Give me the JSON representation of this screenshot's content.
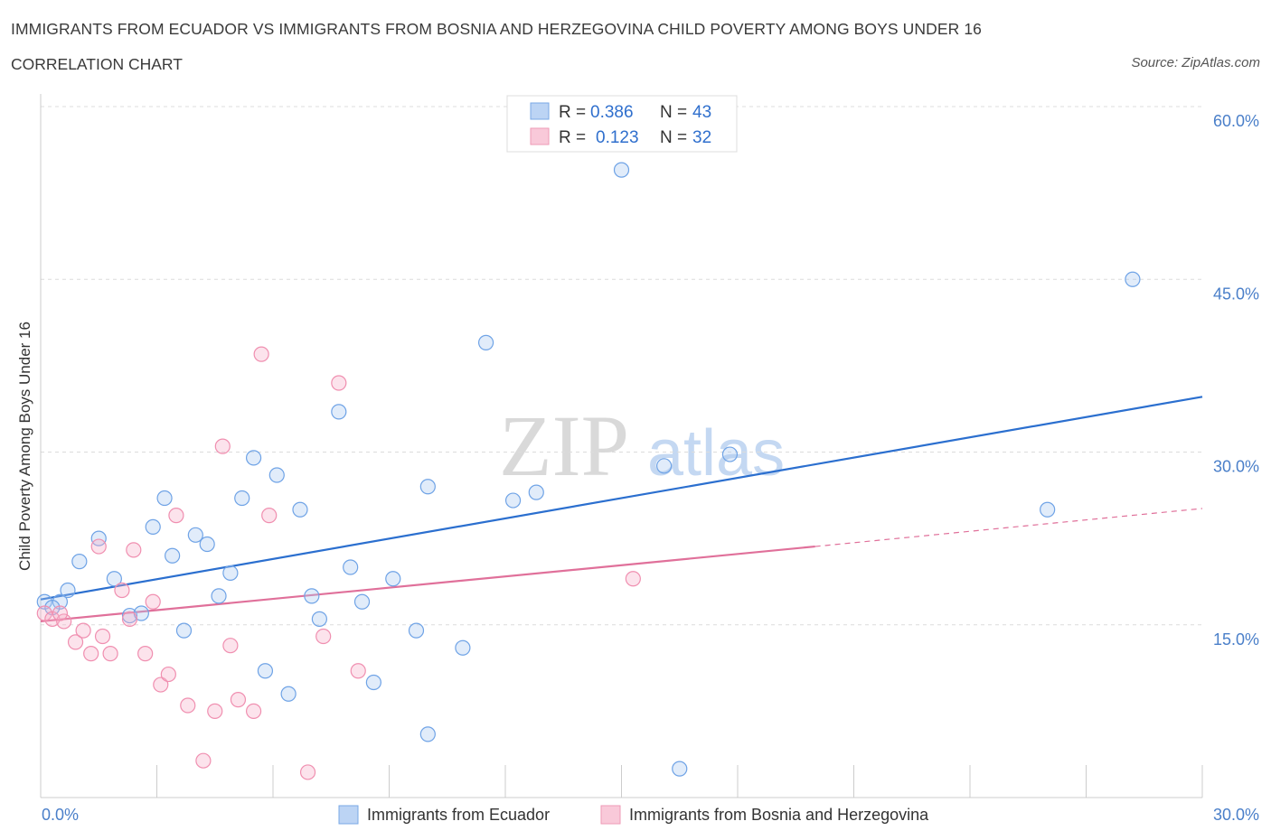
{
  "header": {
    "title": "IMMIGRANTS FROM ECUADOR VS IMMIGRANTS FROM BOSNIA AND HERZEGOVINA CHILD POVERTY AMONG BOYS UNDER 16",
    "subtitle": "CORRELATION CHART",
    "source": "Source: ZipAtlas.com"
  },
  "watermark": {
    "zip": "ZIP",
    "atlas": "atlas"
  },
  "legend": {
    "r_label": "R =",
    "n_label": "N =",
    "rows": [
      {
        "r": "0.386",
        "n": "43"
      },
      {
        "r": "0.123",
        "n": "32"
      }
    ]
  },
  "chart_data": {
    "type": "scatter",
    "title": "IMMIGRANTS FROM ECUADOR VS IMMIGRANTS FROM BOSNIA AND HERZEGOVINA CHILD POVERTY AMONG BOYS UNDER 16",
    "xlabel": "",
    "ylabel": "Child Poverty Among Boys Under 16",
    "xlim": [
      0,
      30
    ],
    "ylim": [
      0,
      60
    ],
    "x_tick_labels": [
      "0.0%",
      "30.0%"
    ],
    "y_tick_labels": [
      "60.0%",
      "45.0%",
      "30.0%",
      "15.0%"
    ],
    "y_ticks": [
      60,
      45,
      30,
      15
    ],
    "colors": {
      "ecuador": "#6fa3e6",
      "bosnia": "#f08fb0",
      "ecuador_line": "#2b6fcf",
      "bosnia_line": "#e0709a"
    },
    "series": [
      {
        "name": "Immigrants from Ecuador",
        "trend": {
          "x0": 0,
          "y0": 17.2,
          "x1": 30,
          "y1": 34.8
        },
        "points": [
          [
            0.1,
            17
          ],
          [
            0.5,
            17
          ],
          [
            0.7,
            18
          ],
          [
            1.0,
            20.5
          ],
          [
            1.5,
            22.5
          ],
          [
            1.9,
            19
          ],
          [
            2.3,
            15.8
          ],
          [
            2.6,
            16
          ],
          [
            2.9,
            23.5
          ],
          [
            3.2,
            26
          ],
          [
            3.4,
            21
          ],
          [
            3.7,
            14.5
          ],
          [
            4.0,
            22.8
          ],
          [
            4.3,
            22
          ],
          [
            4.6,
            17.5
          ],
          [
            4.9,
            19.5
          ],
          [
            5.2,
            26
          ],
          [
            5.5,
            29.5
          ],
          [
            5.8,
            11
          ],
          [
            6.1,
            28
          ],
          [
            6.4,
            9
          ],
          [
            6.7,
            25
          ],
          [
            7.0,
            17.5
          ],
          [
            7.2,
            15.5
          ],
          [
            7.7,
            33.5
          ],
          [
            8.0,
            20
          ],
          [
            8.3,
            17
          ],
          [
            8.6,
            10
          ],
          [
            9.1,
            19
          ],
          [
            9.7,
            14.5
          ],
          [
            10.0,
            27
          ],
          [
            10.9,
            13
          ],
          [
            10.0,
            5.5
          ],
          [
            11.5,
            39.5
          ],
          [
            12.2,
            25.8
          ],
          [
            12.8,
            26.5
          ],
          [
            15.0,
            54.5
          ],
          [
            16.1,
            28.8
          ],
          [
            16.5,
            2.5
          ],
          [
            17.8,
            29.8
          ],
          [
            26.0,
            25
          ],
          [
            28.2,
            45
          ],
          [
            0.3,
            16.5
          ]
        ]
      },
      {
        "name": "Immigrants from Bosnia and Herzegovina",
        "trend": {
          "x0": 0,
          "y0": 15.3,
          "x1": 20,
          "y1": 21.8,
          "dashed_to": {
            "x": 30,
            "y": 25.1
          }
        },
        "points": [
          [
            0.1,
            16
          ],
          [
            0.3,
            15.5
          ],
          [
            0.6,
            15.3
          ],
          [
            0.9,
            13.5
          ],
          [
            1.1,
            14.5
          ],
          [
            1.3,
            12.5
          ],
          [
            1.5,
            21.8
          ],
          [
            1.6,
            14
          ],
          [
            1.8,
            12.5
          ],
          [
            2.1,
            18
          ],
          [
            2.3,
            15.5
          ],
          [
            2.4,
            21.5
          ],
          [
            2.7,
            12.5
          ],
          [
            2.9,
            17
          ],
          [
            3.1,
            9.8
          ],
          [
            3.3,
            10.7
          ],
          [
            3.5,
            24.5
          ],
          [
            3.8,
            8
          ],
          [
            4.2,
            3.2
          ],
          [
            4.5,
            7.5
          ],
          [
            4.7,
            30.5
          ],
          [
            4.9,
            13.2
          ],
          [
            5.1,
            8.5
          ],
          [
            5.5,
            7.5
          ],
          [
            5.7,
            38.5
          ],
          [
            5.9,
            24.5
          ],
          [
            6.9,
            2.2
          ],
          [
            7.3,
            14
          ],
          [
            7.7,
            36
          ],
          [
            8.2,
            11
          ],
          [
            15.3,
            19
          ],
          [
            0.5,
            16
          ]
        ]
      }
    ]
  },
  "bottom_legend": {
    "items": [
      "Immigrants from Ecuador",
      "Immigrants from Bosnia and Herzegovina"
    ]
  }
}
